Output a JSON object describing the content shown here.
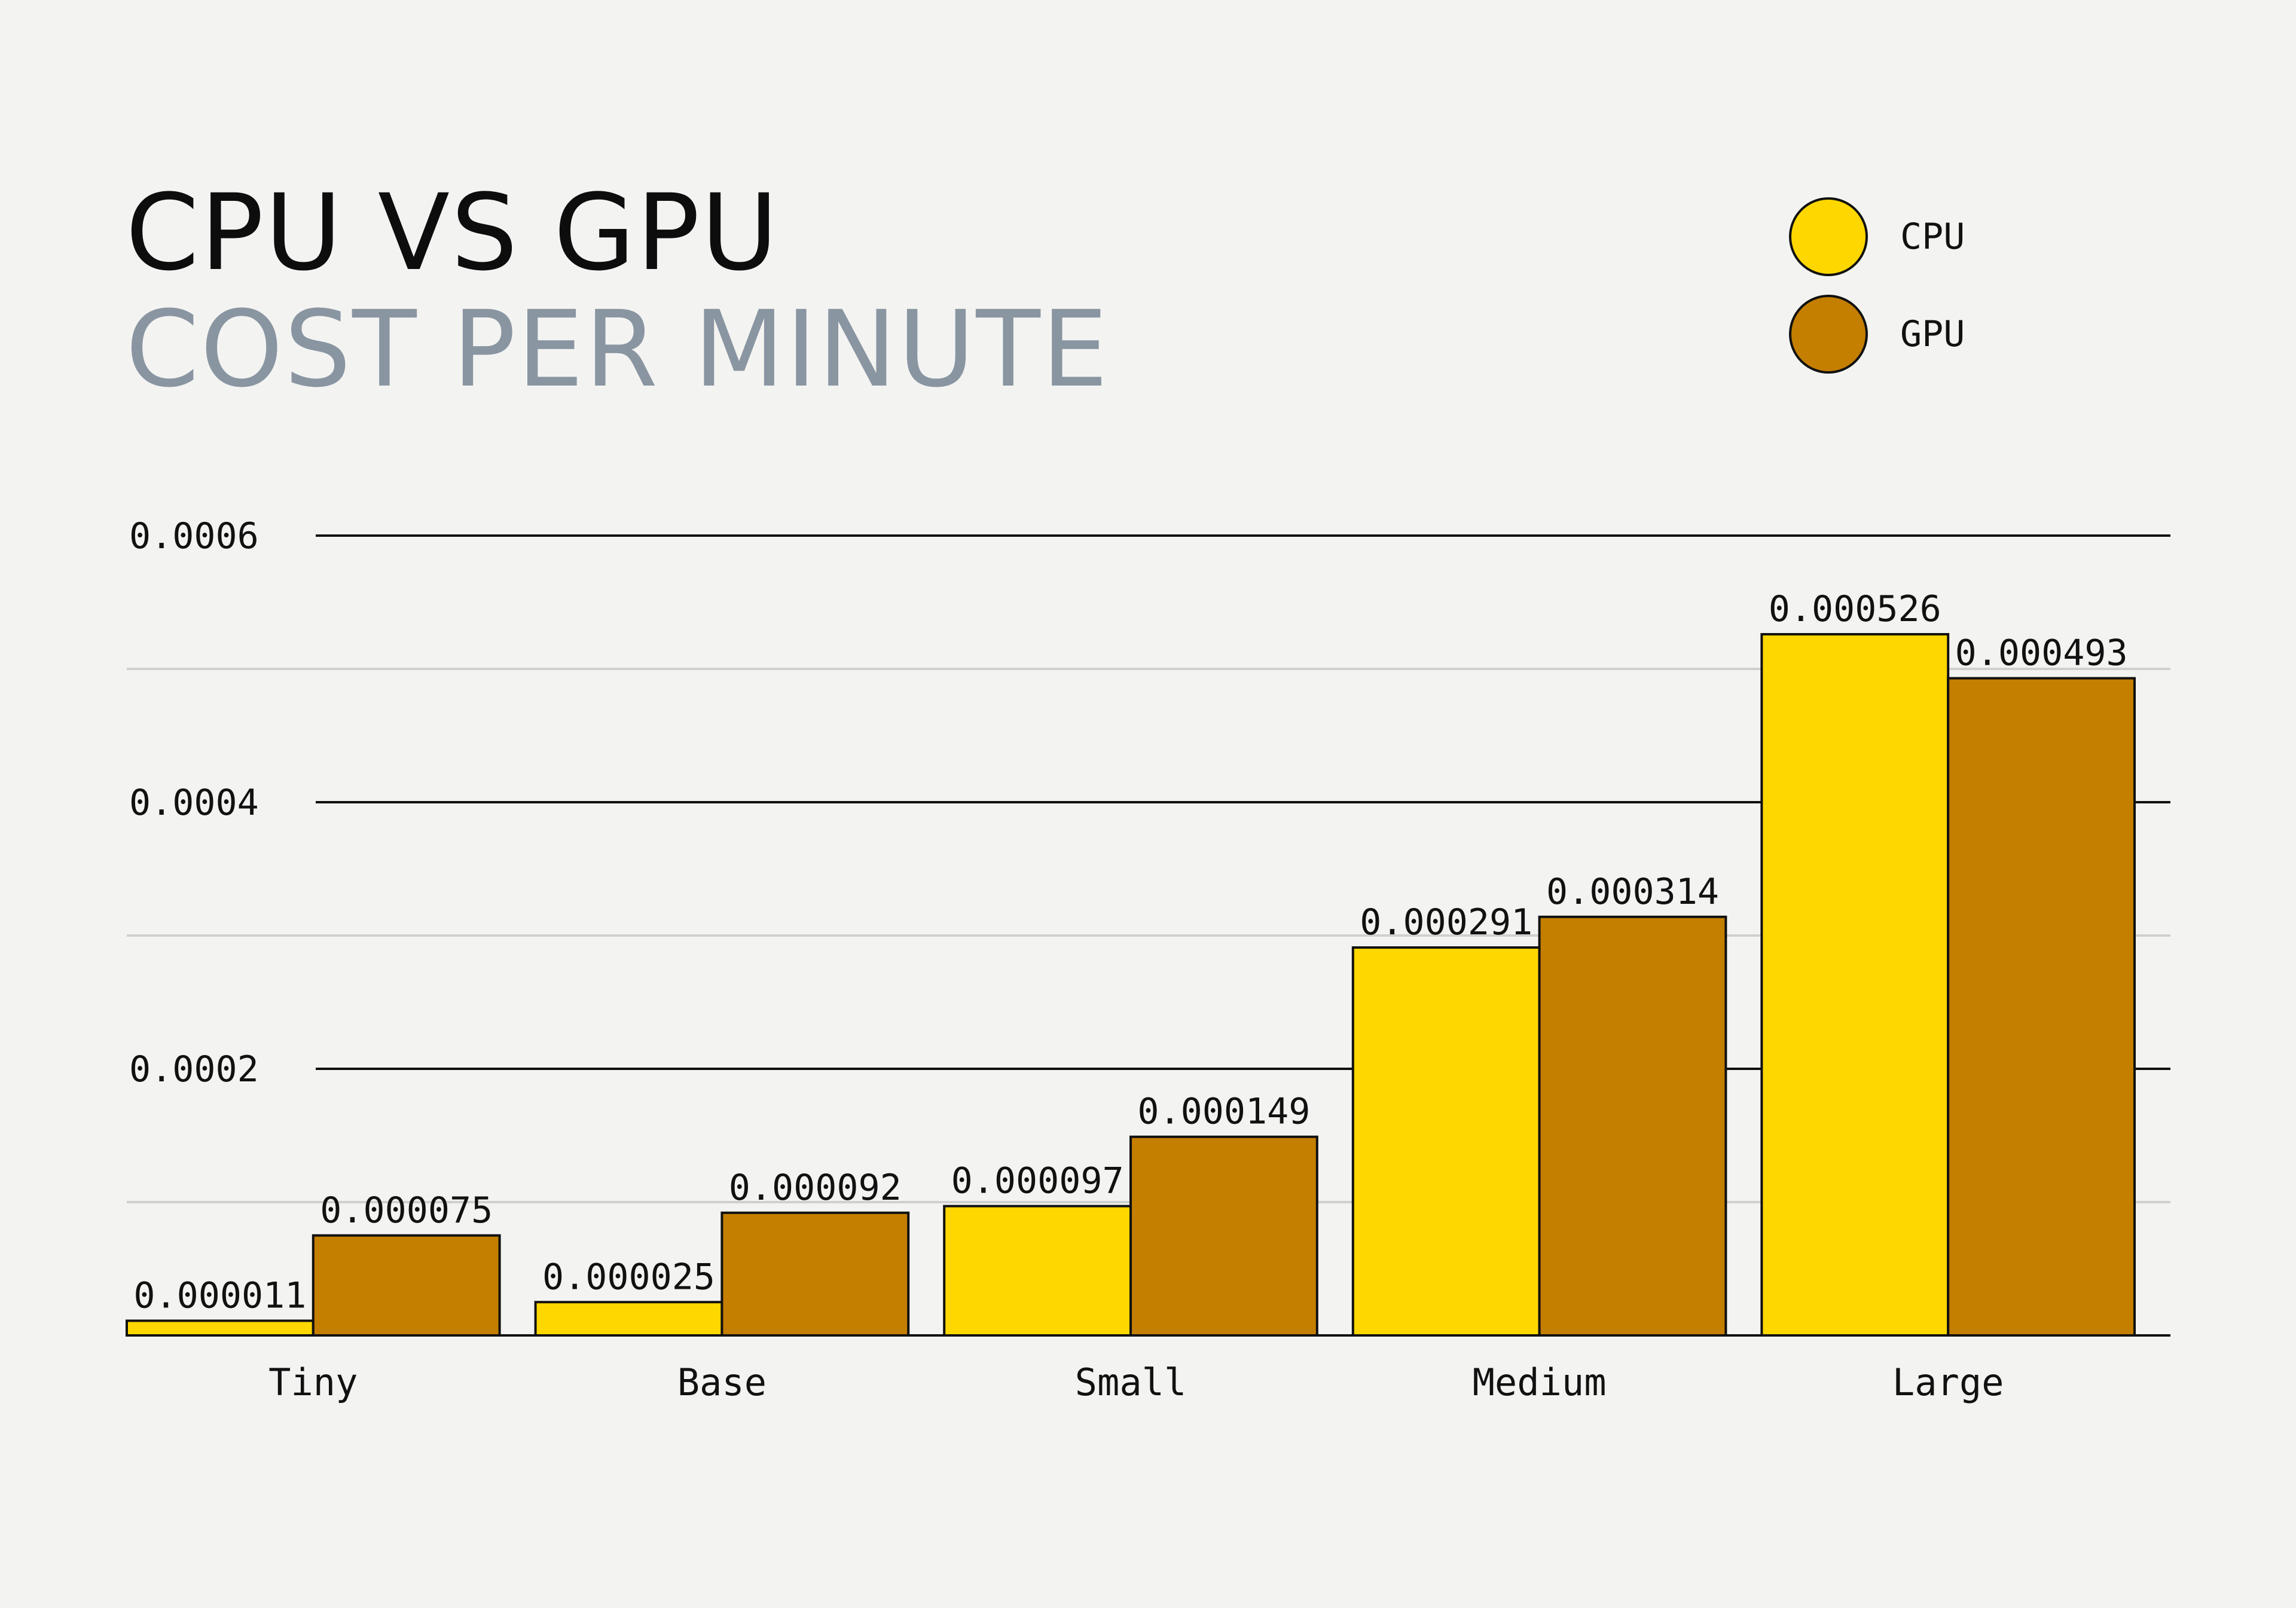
{
  "title": "CPU VS GPU",
  "subtitle": "COST PER MINUTE",
  "legend": [
    {
      "label": "CPU",
      "color": "#ffd700"
    },
    {
      "label": "GPU",
      "color": "#c47e00"
    }
  ],
  "chart_data": {
    "type": "bar",
    "title": "CPU VS GPU",
    "subtitle": "COST PER MINUTE",
    "xlabel": "",
    "ylabel": "",
    "categories": [
      "Tiny",
      "Base",
      "Small",
      "Medium",
      "Large"
    ],
    "series": [
      {
        "name": "CPU",
        "color": "#ffd700",
        "values": [
          1.1e-05,
          2.5e-05,
          9.7e-05,
          0.000291,
          0.000526
        ],
        "labels": [
          "0.000011",
          "0.000025",
          "0.000097",
          "0.000291",
          "0.000526"
        ]
      },
      {
        "name": "GPU",
        "color": "#c47e00",
        "values": [
          7.5e-05,
          9.2e-05,
          0.000149,
          0.000314,
          0.000493
        ],
        "labels": [
          "0.000075",
          "0.000092",
          "0.000149",
          "0.000314",
          "0.000493"
        ]
      }
    ],
    "ylim": [
      0,
      0.0006
    ],
    "yticks": [
      0.0002,
      0.0004,
      0.0006
    ],
    "ytick_labels": [
      "0.0002",
      "0.0004",
      "0.0006"
    ],
    "minor_gridlines": [
      0.0001,
      0.0003,
      0.0005
    ],
    "legend_position": "top-right",
    "grid": true
  }
}
